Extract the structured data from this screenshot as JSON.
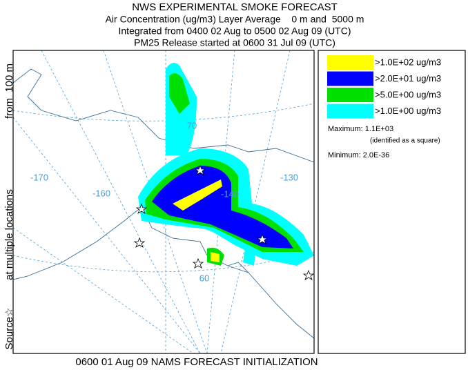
{
  "header": {
    "title": "NWS EXPERIMENTAL SMOKE FORECAST",
    "lines": [
      "Air Concentration (ug/m3) Layer Average    0 m and  5000 m",
      "Integrated from 0400 02 Aug to 0500 02 Aug 09 (UTC)",
      "PM25 Release started at 0600 31 Jul 09 (UTC)"
    ]
  },
  "side_label": [
    "Source☆",
    "at multiple locations",
    "from  100 m"
  ],
  "map_labels": [
    "70",
    "-170",
    "-160",
    "-140",
    "-130",
    "60"
  ],
  "legend": {
    "entries": [
      {
        "label": ">1.0E+02 ug/m3",
        "color": "#ffff00"
      },
      {
        "label": ">2.0E+01 ug/m3",
        "color": "#0000ff"
      },
      {
        "label": ">5.0E+00 ug/m3",
        "color": "#00e000"
      },
      {
        "label": ">1.0E+00 ug/m3",
        "color": "#00ffff"
      }
    ],
    "maximum": "Maximum: 1.1E+03",
    "maximum_note": "(identified as a square)",
    "minimum": "Minimum: 2.0E-36"
  },
  "footer": "0600 01 Aug 09 NAMS FORECAST INITIALIZATION"
}
